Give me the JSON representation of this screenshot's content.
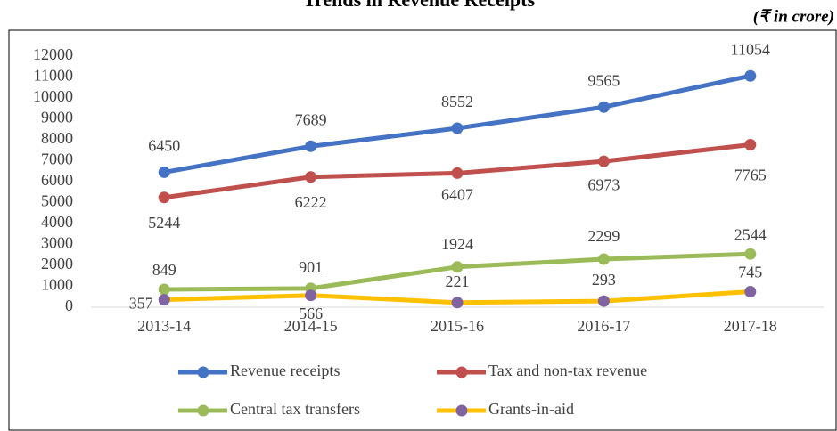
{
  "chart_data": {
    "type": "line",
    "title": "Trends in Revenue Receipts",
    "subtitle": "(₹ in crore)",
    "categories": [
      "2013-14",
      "2014-15",
      "2015-16",
      "2016-17",
      "2017-18"
    ],
    "series": [
      {
        "name": "Revenue receipts",
        "color": "#4472c4",
        "marker_color": "#4472c4",
        "values": [
          6450,
          7689,
          8552,
          9565,
          11054
        ]
      },
      {
        "name": "Tax and non-tax revenue",
        "color": "#c0504d",
        "marker_color": "#c0504d",
        "values": [
          5244,
          6222,
          6407,
          6973,
          7765
        ]
      },
      {
        "name": "Central tax transfers",
        "color": "#9bbb59",
        "marker_color": "#9bbb59",
        "values": [
          849,
          901,
          1924,
          2299,
          2544
        ]
      },
      {
        "name": "Grants-in-aid",
        "color": "#ffc000",
        "marker_color": "#8064a2",
        "values": [
          357,
          566,
          221,
          293,
          745
        ]
      }
    ],
    "ylim": [
      0,
      12000
    ],
    "yticks": [
      0,
      1000,
      2000,
      3000,
      4000,
      5000,
      6000,
      7000,
      8000,
      9000,
      10000,
      11000,
      12000
    ],
    "grid": false,
    "legend": "bottom"
  }
}
